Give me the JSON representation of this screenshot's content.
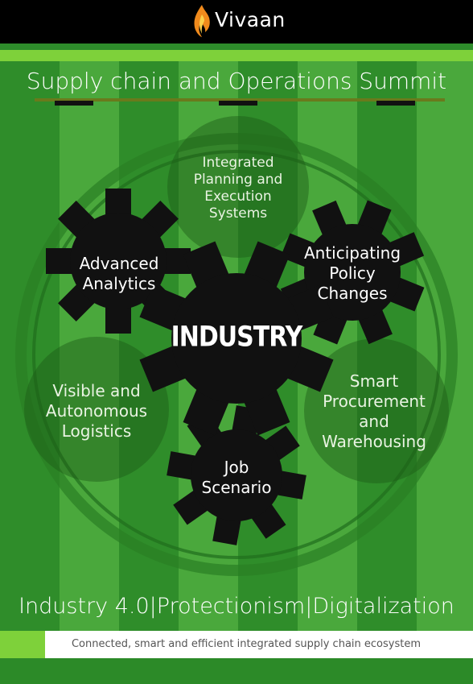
{
  "brand": {
    "name": "Vivaan",
    "logo_icon": "flame-icon"
  },
  "title": "Supply chain and Operations Summit",
  "center": "INDUSTRY",
  "gears": [
    {
      "label": "Advanced\nAnalytics"
    },
    {
      "label": "Anticipating\nPolicy\nChanges"
    },
    {
      "label": "Job\nScenario"
    }
  ],
  "circles": [
    {
      "label": "Integrated\nPlanning and\nExecution\nSystems"
    },
    {
      "label": "Visible and\nAutonomous\nLogistics"
    },
    {
      "label": "Smart\nProcurement\nand\nWarehousing"
    }
  ],
  "tagline": "Industry 4.0|Protectionism|Digitalization",
  "footer": "Connected, smart and efficient integrated supply chain ecosystem",
  "colors": {
    "stripe_dark": "#2f8d2a",
    "stripe_light": "#4aa83c",
    "lime": "#7ed13a",
    "gear": "#111111",
    "flame": "#f08a1c"
  }
}
